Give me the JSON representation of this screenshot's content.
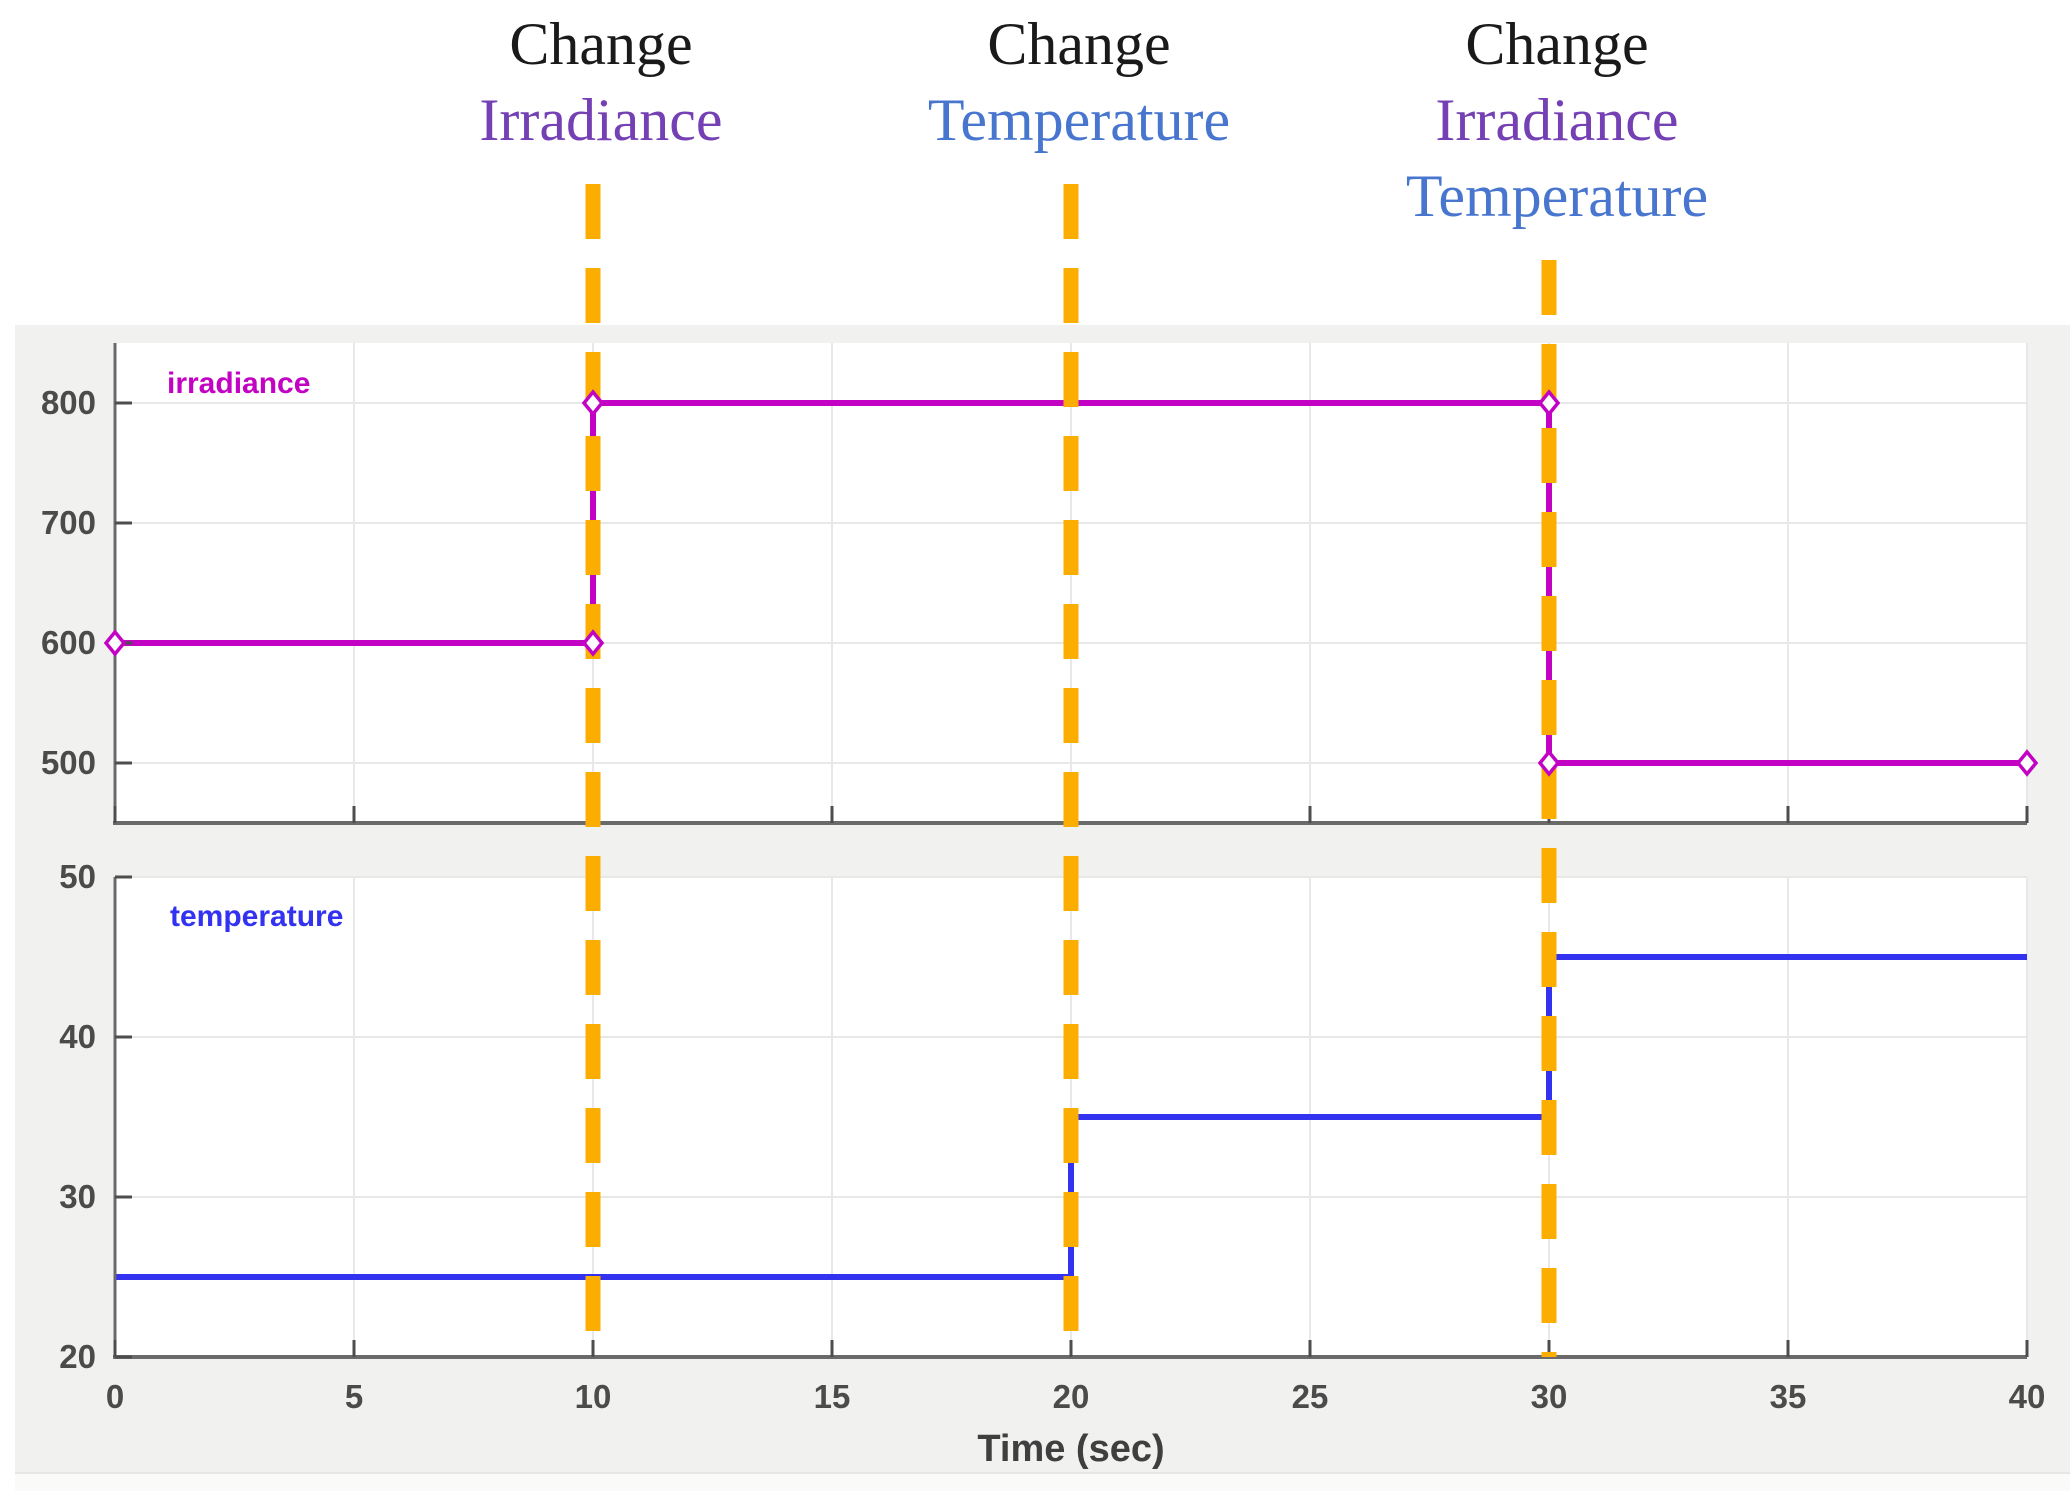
{
  "page": {
    "background": "#ffffff",
    "panel_background": "#f1f1ef"
  },
  "annotations": [
    {
      "time": 10,
      "lines": [
        {
          "text": "Change",
          "color": "#1a1a1a"
        },
        {
          "text": "Irradiance",
          "color": "#7440b4"
        }
      ]
    },
    {
      "time": 20,
      "lines": [
        {
          "text": "Change",
          "color": "#1a1a1a"
        },
        {
          "text": "Temperature",
          "color": "#4876cf"
        }
      ]
    },
    {
      "time": 30,
      "lines": [
        {
          "text": "Change",
          "color": "#1a1a1a"
        },
        {
          "text": "Irradiance",
          "color": "#7440b4"
        },
        {
          "text": "Temperature",
          "color": "#4876cf"
        }
      ]
    }
  ],
  "event_times": [
    10,
    20,
    30
  ],
  "event_line_color": "#fcae00",
  "grid_color": "#e8e8e8",
  "axis_color": "#6a6a6a",
  "tick_mark_color": "#4d4d4d",
  "chart_data": [
    {
      "type": "line",
      "subtype": "stair",
      "series_label": "irradiance",
      "color": "#c303c3",
      "x": [
        0,
        10,
        30,
        40
      ],
      "y": [
        600,
        800,
        500,
        500
      ],
      "marker": "diamond",
      "marker_points": [
        [
          0,
          600
        ],
        [
          10,
          600
        ],
        [
          10,
          800
        ],
        [
          30,
          800
        ],
        [
          30,
          500
        ],
        [
          40,
          500
        ]
      ],
      "xlim": [
        0,
        40
      ],
      "ylim": [
        450,
        850
      ],
      "yticks": [
        800,
        700,
        600,
        500
      ],
      "xticks": [
        0,
        5,
        10,
        15,
        20,
        25,
        30,
        35,
        40
      ],
      "grid": true,
      "legend_position": "inside-top-left"
    },
    {
      "type": "line",
      "subtype": "stair",
      "series_label": "temperature",
      "color": "#3232f0",
      "x": [
        0,
        20,
        30,
        40
      ],
      "y": [
        25,
        35,
        45,
        45
      ],
      "marker": "none",
      "marker_points": [],
      "xlim": [
        0,
        40
      ],
      "ylim": [
        20,
        50
      ],
      "yticks": [
        50,
        40,
        30,
        20
      ],
      "xticks": [
        0,
        5,
        10,
        15,
        20,
        25,
        30,
        35,
        40
      ],
      "grid": true,
      "xlabel": "Time (sec)",
      "legend_position": "inside-top-left"
    }
  ],
  "axis": {
    "xlabel": "Time (sec)",
    "x_tick_labels": [
      "0",
      "5",
      "10",
      "15",
      "20",
      "25",
      "30",
      "35",
      "40"
    ],
    "top_y_tick_labels": [
      "800",
      "700",
      "600",
      "500"
    ],
    "bottom_y_tick_labels": [
      "50",
      "40",
      "30",
      "20"
    ]
  }
}
